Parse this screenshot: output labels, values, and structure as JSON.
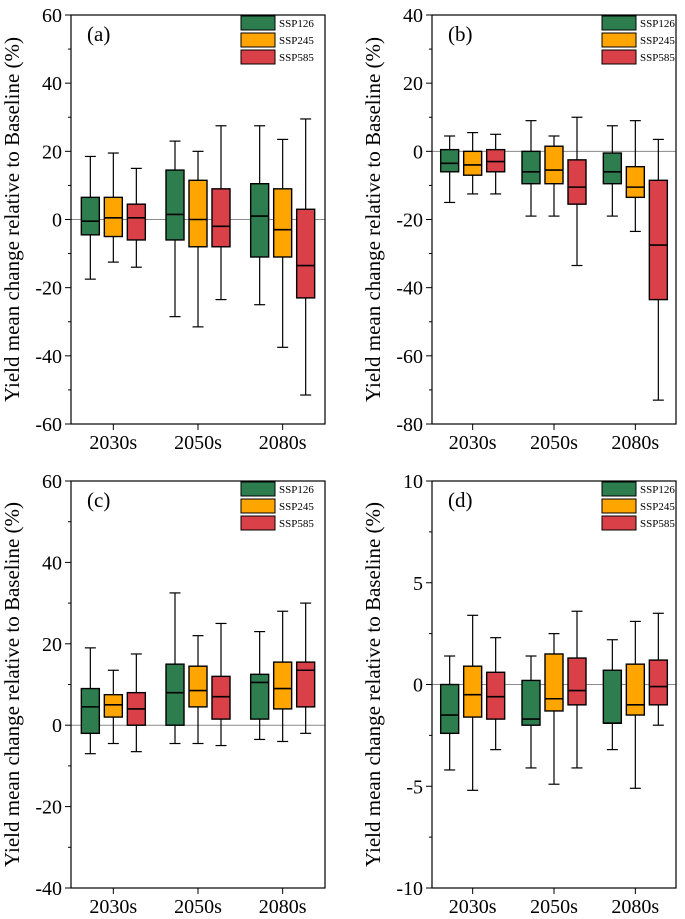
{
  "figure": {
    "title": "Yield mean change box plots (four panels)"
  },
  "colors": {
    "SSP126": "#2e7d4f",
    "SSP245": "#ffa500",
    "SSP585": "#d94048"
  },
  "chart_data": [
    {
      "type": "box",
      "panel_label": "(a)",
      "ylabel": "Yield mean change relative to Baseline (%)",
      "ylim": [
        -60,
        60
      ],
      "yticks": [
        -60,
        -40,
        -20,
        0,
        20,
        40,
        60
      ],
      "categories": [
        "2030s",
        "2050s",
        "2080s"
      ],
      "legend": [
        "SSP126",
        "SSP245",
        "SSP585"
      ],
      "legend_position": "top-right",
      "series": [
        {
          "name": "SSP126",
          "boxes": [
            {
              "min": -17.5,
              "q1": -4.5,
              "median": -0.5,
              "q3": 6.5,
              "max": 18.5
            },
            {
              "min": -28.5,
              "q1": -6.0,
              "median": 1.5,
              "q3": 14.5,
              "max": 23.0
            },
            {
              "min": -25.0,
              "q1": -11.0,
              "median": 1.0,
              "q3": 10.5,
              "max": 27.5
            }
          ]
        },
        {
          "name": "SSP245",
          "boxes": [
            {
              "min": -12.5,
              "q1": -5.0,
              "median": 0.5,
              "q3": 6.5,
              "max": 19.5
            },
            {
              "min": -31.5,
              "q1": -8.0,
              "median": 0.0,
              "q3": 11.5,
              "max": 20.0
            },
            {
              "min": -37.5,
              "q1": -11.0,
              "median": -3.0,
              "q3": 9.0,
              "max": 23.5
            }
          ]
        },
        {
          "name": "SSP585",
          "boxes": [
            {
              "min": -14.0,
              "q1": -6.0,
              "median": 0.5,
              "q3": 4.5,
              "max": 15.0
            },
            {
              "min": -23.5,
              "q1": -8.0,
              "median": -2.0,
              "q3": 9.0,
              "max": 27.5
            },
            {
              "min": -51.5,
              "q1": -23.0,
              "median": -13.5,
              "q3": 3.0,
              "max": 29.5
            }
          ]
        }
      ]
    },
    {
      "type": "box",
      "panel_label": "(b)",
      "ylabel": "Yield mean change relative to Baseline (%)",
      "ylim": [
        -80,
        40
      ],
      "yticks": [
        -80,
        -60,
        -40,
        -20,
        0,
        20,
        40
      ],
      "categories": [
        "2030s",
        "2050s",
        "2080s"
      ],
      "legend": [
        "SSP126",
        "SSP245",
        "SSP585"
      ],
      "legend_position": "top-right",
      "series": [
        {
          "name": "SSP126",
          "boxes": [
            {
              "min": -15.0,
              "q1": -6.0,
              "median": -3.5,
              "q3": 0.5,
              "max": 4.5
            },
            {
              "min": -19.0,
              "q1": -9.5,
              "median": -6.0,
              "q3": 0.0,
              "max": 9.0
            },
            {
              "min": -19.0,
              "q1": -9.5,
              "median": -6.0,
              "q3": -0.5,
              "max": 7.5
            }
          ]
        },
        {
          "name": "SSP245",
          "boxes": [
            {
              "min": -12.5,
              "q1": -7.0,
              "median": -4.0,
              "q3": 0.0,
              "max": 5.5
            },
            {
              "min": -19.0,
              "q1": -9.5,
              "median": -5.5,
              "q3": 1.5,
              "max": 4.5
            },
            {
              "min": -23.5,
              "q1": -13.5,
              "median": -10.5,
              "q3": -4.5,
              "max": 9.0
            }
          ]
        },
        {
          "name": "SSP585",
          "boxes": [
            {
              "min": -12.5,
              "q1": -6.0,
              "median": -3.0,
              "q3": 0.5,
              "max": 5.0
            },
            {
              "min": -33.5,
              "q1": -15.5,
              "median": -10.5,
              "q3": -2.5,
              "max": 10.0
            },
            {
              "min": -73.0,
              "q1": -43.5,
              "median": -27.5,
              "q3": -8.5,
              "max": 3.5
            }
          ]
        }
      ]
    },
    {
      "type": "box",
      "panel_label": "(c)",
      "ylabel": "Yield mean change relative to Baseline (%)",
      "ylim": [
        -40,
        60
      ],
      "yticks": [
        -40,
        -20,
        0,
        20,
        40,
        60
      ],
      "categories": [
        "2030s",
        "2050s",
        "2080s"
      ],
      "legend": [
        "SSP126",
        "SSP245",
        "SSP585"
      ],
      "legend_position": "top-right",
      "series": [
        {
          "name": "SSP126",
          "boxes": [
            {
              "min": -7.0,
              "q1": -2.0,
              "median": 4.5,
              "q3": 9.0,
              "max": 19.0
            },
            {
              "min": -4.5,
              "q1": 0.0,
              "median": 8.0,
              "q3": 15.0,
              "max": 32.5
            },
            {
              "min": -3.5,
              "q1": 1.5,
              "median": 10.5,
              "q3": 12.5,
              "max": 23.0
            }
          ]
        },
        {
          "name": "SSP245",
          "boxes": [
            {
              "min": -4.5,
              "q1": 2.0,
              "median": 5.0,
              "q3": 7.5,
              "max": 13.5
            },
            {
              "min": -4.5,
              "q1": 4.5,
              "median": 8.5,
              "q3": 14.5,
              "max": 22.0
            },
            {
              "min": -4.0,
              "q1": 4.0,
              "median": 9.0,
              "q3": 15.5,
              "max": 28.0
            }
          ]
        },
        {
          "name": "SSP585",
          "boxes": [
            {
              "min": -6.5,
              "q1": 0.0,
              "median": 4.0,
              "q3": 8.0,
              "max": 17.5
            },
            {
              "min": -5.0,
              "q1": 1.5,
              "median": 7.0,
              "q3": 12.0,
              "max": 25.0
            },
            {
              "min": -2.0,
              "q1": 4.5,
              "median": 13.5,
              "q3": 15.5,
              "max": 30.0
            }
          ]
        }
      ]
    },
    {
      "type": "box",
      "panel_label": "(d)",
      "ylabel": "Yield mean change relative to Baseline (%)",
      "ylim": [
        -10,
        10
      ],
      "yticks": [
        -10,
        -5,
        0,
        5,
        10
      ],
      "categories": [
        "2030s",
        "2050s",
        "2080s"
      ],
      "legend": [
        "SSP126",
        "SSP245",
        "SSP585"
      ],
      "legend_position": "top-right",
      "series": [
        {
          "name": "SSP126",
          "boxes": [
            {
              "min": -4.2,
              "q1": -2.4,
              "median": -1.5,
              "q3": 0.0,
              "max": 1.4
            },
            {
              "min": -4.1,
              "q1": -2.0,
              "median": -1.7,
              "q3": 0.2,
              "max": 1.4
            },
            {
              "min": -3.2,
              "q1": -1.9,
              "median": -1.9,
              "q3": 0.7,
              "max": 2.2
            }
          ]
        },
        {
          "name": "SSP245",
          "boxes": [
            {
              "min": -5.2,
              "q1": -1.6,
              "median": -0.5,
              "q3": 0.9,
              "max": 3.4
            },
            {
              "min": -4.9,
              "q1": -1.3,
              "median": -0.7,
              "q3": 1.5,
              "max": 2.5
            },
            {
              "min": -5.1,
              "q1": -1.5,
              "median": -1.0,
              "q3": 1.0,
              "max": 3.1
            }
          ]
        },
        {
          "name": "SSP585",
          "boxes": [
            {
              "min": -3.2,
              "q1": -1.7,
              "median": -0.6,
              "q3": 0.6,
              "max": 2.3
            },
            {
              "min": -4.1,
              "q1": -1.0,
              "median": -0.3,
              "q3": 1.3,
              "max": 3.6
            },
            {
              "min": -2.0,
              "q1": -1.0,
              "median": -0.1,
              "q3": 1.2,
              "max": 3.5
            }
          ]
        }
      ]
    }
  ]
}
